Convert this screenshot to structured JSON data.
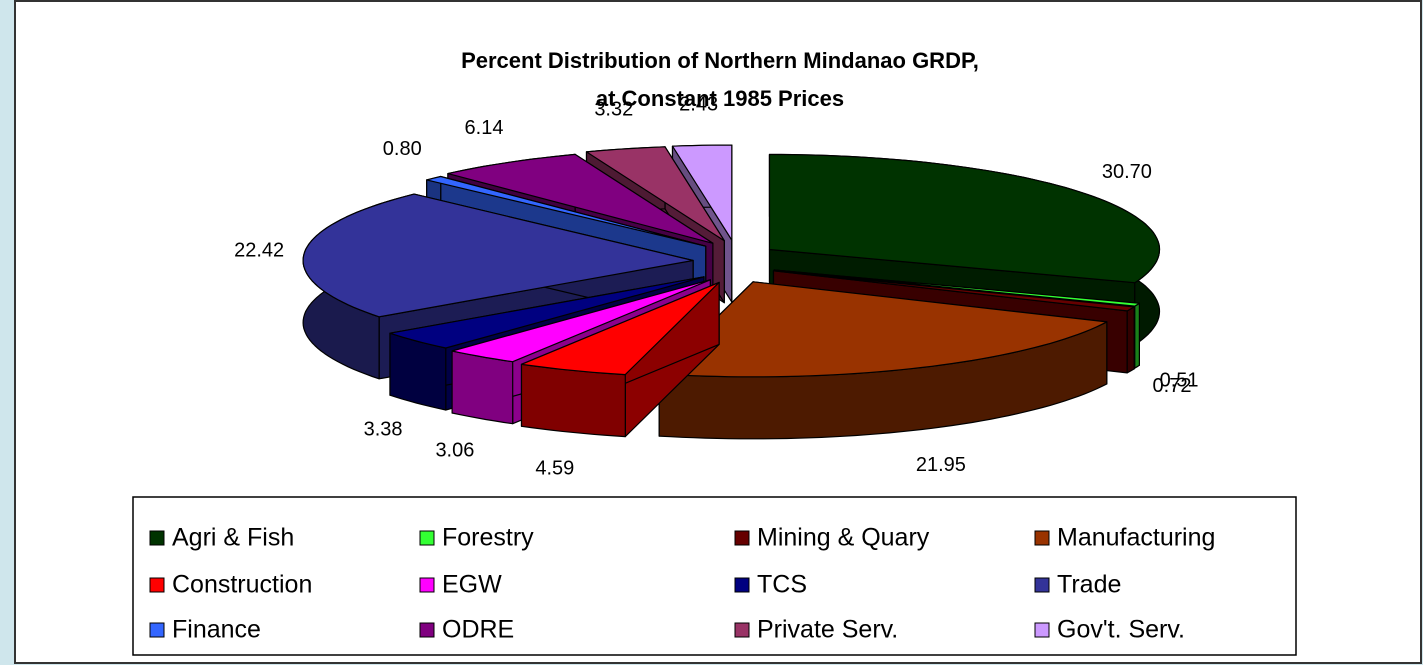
{
  "chart_data": {
    "type": "pie",
    "title": [
      "Percent Distribution of Northern Mindanao GRDP,",
      "at Constant 1985 Prices"
    ],
    "categories": [
      "Agri & Fish",
      "Forestry",
      "Mining & Quary",
      "Manufacturing",
      "Construction",
      "EGW",
      "TCS",
      "Trade",
      "Finance",
      "ODRE",
      "Private Serv.",
      "Gov't. Serv."
    ],
    "values": [
      30.7,
      0.51,
      0.72,
      21.95,
      4.59,
      3.06,
      3.38,
      22.42,
      0.8,
      6.14,
      3.32,
      2.43
    ],
    "value_labels": [
      "30.70",
      "0.51",
      "0.72",
      "21.95",
      "4.59",
      "3.06",
      "3.38",
      "22.42",
      "0.80",
      "6.14",
      "3.32",
      "2.43"
    ],
    "colors": [
      "#003300",
      "#33ff33",
      "#660000",
      "#993300",
      "#ff0000",
      "#ff00ff",
      "#000080",
      "#333399",
      "#3366ff",
      "#800080",
      "#993366",
      "#cc99ff"
    ],
    "legend": "bottom"
  }
}
